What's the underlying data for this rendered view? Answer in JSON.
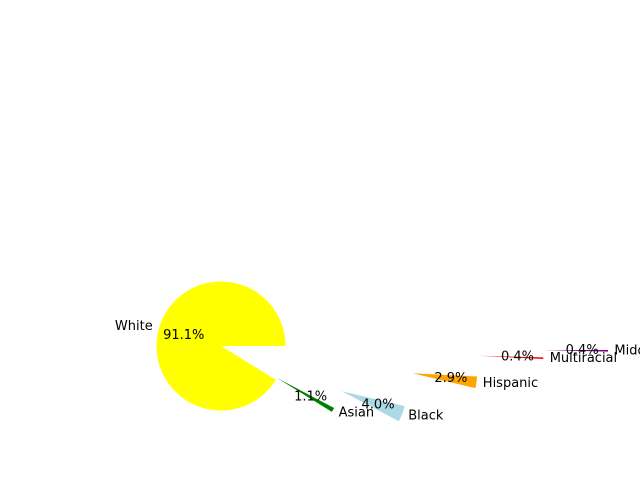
{
  "chart_data": {
    "type": "pie",
    "exploded": true,
    "categories": [
      "White",
      "Asian",
      "Black",
      "Hispanic",
      "Multiracial",
      "Middle Eastern"
    ],
    "values": [
      91.1,
      1.1,
      4.0,
      2.9,
      0.4,
      0.4
    ],
    "value_labels": [
      "91.1%",
      "1.1%",
      "4.0%",
      "2.9%",
      "0.4%",
      "0.4%"
    ],
    "colors": [
      "#ffff00",
      "#008000",
      "#add8e6",
      "#ffa500",
      "#ff0000",
      "#800080"
    ]
  }
}
